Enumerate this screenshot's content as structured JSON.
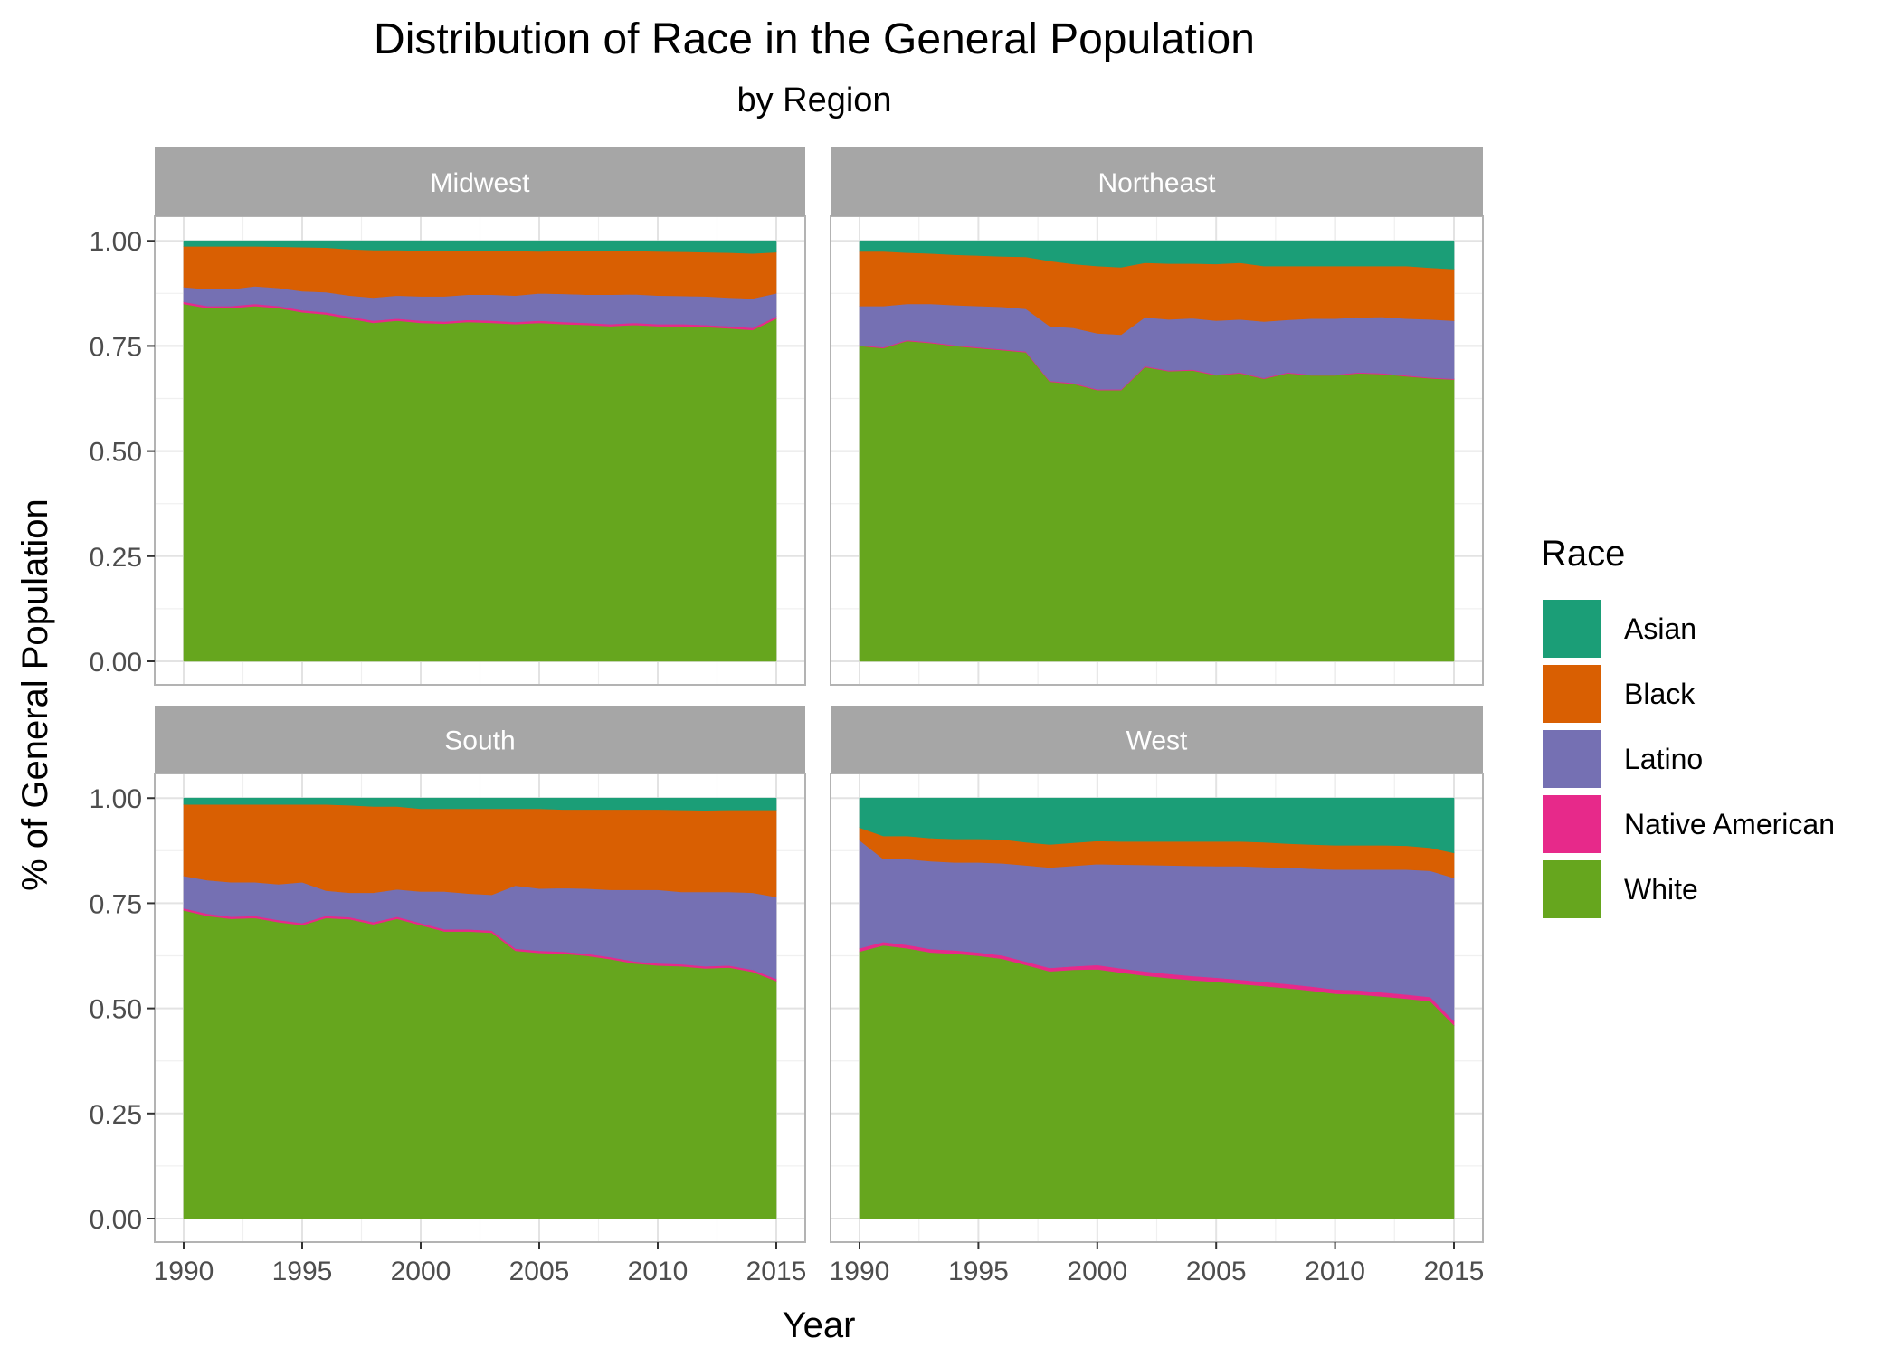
{
  "chart_data": {
    "type": "area",
    "title": "Distribution of Race in the General Population",
    "subtitle": "by Region",
    "xlabel": "Year",
    "ylabel": "% of General Population",
    "xlim": [
      1990,
      2015
    ],
    "ylim": [
      0,
      1.05
    ],
    "x_ticks": [
      "1990",
      "1995",
      "2000",
      "2005",
      "2010",
      "2015"
    ],
    "y_ticks": [
      "0.00",
      "0.25",
      "0.50",
      "0.75",
      "1.00"
    ],
    "legend": {
      "title": "Race",
      "placement": "right",
      "entries": [
        {
          "name": "Asian",
          "color": "#1B9E77"
        },
        {
          "name": "Black",
          "color": "#D95F02"
        },
        {
          "name": "Latino",
          "color": "#7570B3"
        },
        {
          "name": "Native American",
          "color": "#E7298A"
        },
        {
          "name": "White",
          "color": "#66A61E"
        }
      ]
    },
    "stack_order_bottom_to_top": [
      "White",
      "Native American",
      "Latino",
      "Black",
      "Asian"
    ],
    "x": [
      1990,
      1991,
      1992,
      1993,
      1994,
      1995,
      1996,
      1997,
      1998,
      1999,
      2000,
      2001,
      2002,
      2003,
      2004,
      2005,
      2006,
      2007,
      2008,
      2009,
      2010,
      2011,
      2012,
      2013,
      2014,
      2015
    ],
    "panels": [
      {
        "region": "Midwest",
        "series": [
          {
            "name": "White",
            "values": [
              0.85,
              0.84,
              0.84,
              0.845,
              0.84,
              0.83,
              0.825,
              0.815,
              0.805,
              0.81,
              0.805,
              0.803,
              0.807,
              0.805,
              0.802,
              0.805,
              0.802,
              0.8,
              0.797,
              0.8,
              0.797,
              0.797,
              0.795,
              0.792,
              0.788,
              0.815
            ]
          },
          {
            "name": "Native American",
            "values": [
              0.005,
              0.005,
              0.005,
              0.005,
              0.005,
              0.005,
              0.005,
              0.005,
              0.005,
              0.005,
              0.005,
              0.005,
              0.005,
              0.005,
              0.005,
              0.005,
              0.005,
              0.005,
              0.005,
              0.005,
              0.005,
              0.005,
              0.005,
              0.005,
              0.005,
              0.005
            ]
          },
          {
            "name": "Latino",
            "values": [
              0.035,
              0.04,
              0.04,
              0.042,
              0.043,
              0.045,
              0.048,
              0.05,
              0.055,
              0.055,
              0.058,
              0.06,
              0.06,
              0.062,
              0.063,
              0.065,
              0.067,
              0.067,
              0.07,
              0.068,
              0.068,
              0.067,
              0.068,
              0.068,
              0.07,
              0.055
            ]
          },
          {
            "name": "Black",
            "values": [
              0.097,
              0.102,
              0.102,
              0.095,
              0.098,
              0.105,
              0.106,
              0.11,
              0.113,
              0.108,
              0.109,
              0.109,
              0.104,
              0.104,
              0.106,
              0.1,
              0.102,
              0.104,
              0.104,
              0.103,
              0.105,
              0.105,
              0.105,
              0.107,
              0.107,
              0.098
            ]
          },
          {
            "name": "Asian",
            "values": [
              0.013,
              0.013,
              0.013,
              0.013,
              0.014,
              0.015,
              0.016,
              0.02,
              0.022,
              0.022,
              0.023,
              0.023,
              0.024,
              0.024,
              0.024,
              0.025,
              0.024,
              0.024,
              0.024,
              0.024,
              0.025,
              0.026,
              0.027,
              0.028,
              0.03,
              0.027
            ]
          }
        ]
      },
      {
        "region": "Northeast",
        "series": [
          {
            "name": "White",
            "values": [
              0.75,
              0.745,
              0.762,
              0.757,
              0.75,
              0.745,
              0.74,
              0.735,
              0.665,
              0.66,
              0.645,
              0.645,
              0.7,
              0.69,
              0.692,
              0.68,
              0.685,
              0.672,
              0.685,
              0.68,
              0.68,
              0.685,
              0.683,
              0.678,
              0.673,
              0.67
            ]
          },
          {
            "name": "Native American",
            "values": [
              0.002,
              0.002,
              0.002,
              0.002,
              0.002,
              0.002,
              0.002,
              0.002,
              0.002,
              0.002,
              0.002,
              0.002,
              0.002,
              0.002,
              0.002,
              0.002,
              0.002,
              0.002,
              0.002,
              0.002,
              0.002,
              0.002,
              0.002,
              0.002,
              0.002,
              0.002
            ]
          },
          {
            "name": "Latino",
            "values": [
              0.093,
              0.098,
              0.086,
              0.091,
              0.095,
              0.098,
              0.101,
              0.101,
              0.13,
              0.131,
              0.133,
              0.13,
              0.116,
              0.121,
              0.122,
              0.128,
              0.126,
              0.134,
              0.125,
              0.133,
              0.133,
              0.131,
              0.134,
              0.135,
              0.138,
              0.138
            ]
          },
          {
            "name": "Black",
            "values": [
              0.13,
              0.13,
              0.122,
              0.12,
              0.12,
              0.12,
              0.12,
              0.124,
              0.155,
              0.152,
              0.16,
              0.16,
              0.13,
              0.133,
              0.13,
              0.135,
              0.135,
              0.132,
              0.128,
              0.125,
              0.125,
              0.122,
              0.121,
              0.125,
              0.123,
              0.123
            ]
          },
          {
            "name": "Asian",
            "values": [
              0.025,
              0.025,
              0.028,
              0.03,
              0.033,
              0.035,
              0.037,
              0.038,
              0.048,
              0.055,
              0.06,
              0.063,
              0.052,
              0.054,
              0.054,
              0.055,
              0.052,
              0.06,
              0.06,
              0.06,
              0.06,
              0.06,
              0.06,
              0.06,
              0.064,
              0.067
            ]
          }
        ]
      },
      {
        "region": "South",
        "series": [
          {
            "name": "White",
            "values": [
              0.733,
              0.72,
              0.713,
              0.715,
              0.705,
              0.698,
              0.715,
              0.712,
              0.7,
              0.713,
              0.698,
              0.683,
              0.683,
              0.68,
              0.637,
              0.632,
              0.63,
              0.625,
              0.617,
              0.607,
              0.602,
              0.6,
              0.595,
              0.597,
              0.587,
              0.565
            ]
          },
          {
            "name": "Native American",
            "values": [
              0.005,
              0.005,
              0.005,
              0.005,
              0.005,
              0.005,
              0.005,
              0.005,
              0.005,
              0.005,
              0.005,
              0.005,
              0.005,
              0.005,
              0.005,
              0.005,
              0.005,
              0.005,
              0.005,
              0.005,
              0.005,
              0.005,
              0.005,
              0.005,
              0.005,
              0.005
            ]
          },
          {
            "name": "Latino",
            "values": [
              0.077,
              0.08,
              0.082,
              0.08,
              0.085,
              0.097,
              0.06,
              0.058,
              0.07,
              0.065,
              0.075,
              0.09,
              0.085,
              0.085,
              0.15,
              0.148,
              0.151,
              0.155,
              0.16,
              0.17,
              0.175,
              0.172,
              0.177,
              0.175,
              0.183,
              0.195
            ]
          },
          {
            "name": "Black",
            "values": [
              0.17,
              0.18,
              0.185,
              0.185,
              0.19,
              0.185,
              0.205,
              0.208,
              0.205,
              0.197,
              0.197,
              0.197,
              0.202,
              0.205,
              0.183,
              0.19,
              0.187,
              0.188,
              0.191,
              0.191,
              0.191,
              0.195,
              0.194,
              0.195,
              0.197,
              0.207
            ]
          },
          {
            "name": "Asian",
            "values": [
              0.015,
              0.015,
              0.015,
              0.015,
              0.015,
              0.015,
              0.015,
              0.017,
              0.02,
              0.02,
              0.025,
              0.025,
              0.025,
              0.025,
              0.025,
              0.025,
              0.027,
              0.027,
              0.027,
              0.027,
              0.027,
              0.028,
              0.029,
              0.028,
              0.028,
              0.028
            ]
          }
        ]
      },
      {
        "region": "West",
        "series": [
          {
            "name": "White",
            "values": [
              0.635,
              0.65,
              0.643,
              0.633,
              0.63,
              0.625,
              0.618,
              0.603,
              0.588,
              0.592,
              0.593,
              0.585,
              0.578,
              0.572,
              0.567,
              0.563,
              0.558,
              0.553,
              0.548,
              0.542,
              0.535,
              0.533,
              0.528,
              0.523,
              0.517,
              0.46
            ]
          },
          {
            "name": "Native American",
            "values": [
              0.008,
              0.008,
              0.008,
              0.008,
              0.008,
              0.008,
              0.008,
              0.008,
              0.008,
              0.008,
              0.01,
              0.01,
              0.01,
              0.01,
              0.01,
              0.01,
              0.01,
              0.01,
              0.01,
              0.01,
              0.01,
              0.01,
              0.01,
              0.01,
              0.01,
              0.01
            ]
          },
          {
            "name": "Latino",
            "values": [
              0.257,
              0.197,
              0.204,
              0.209,
              0.209,
              0.214,
              0.219,
              0.229,
              0.239,
              0.239,
              0.24,
              0.247,
              0.253,
              0.258,
              0.262,
              0.265,
              0.27,
              0.273,
              0.277,
              0.28,
              0.285,
              0.287,
              0.292,
              0.297,
              0.3,
              0.34
            ]
          },
          {
            "name": "Black",
            "values": [
              0.03,
              0.055,
              0.055,
              0.055,
              0.056,
              0.056,
              0.057,
              0.055,
              0.055,
              0.055,
              0.055,
              0.055,
              0.056,
              0.057,
              0.058,
              0.059,
              0.059,
              0.059,
              0.057,
              0.058,
              0.058,
              0.058,
              0.058,
              0.057,
              0.055,
              0.06
            ]
          },
          {
            "name": "Asian",
            "values": [
              0.07,
              0.09,
              0.09,
              0.095,
              0.097,
              0.097,
              0.098,
              0.105,
              0.11,
              0.106,
              0.102,
              0.103,
              0.103,
              0.103,
              0.103,
              0.103,
              0.103,
              0.105,
              0.108,
              0.11,
              0.112,
              0.112,
              0.112,
              0.113,
              0.118,
              0.13
            ]
          }
        ]
      }
    ]
  }
}
